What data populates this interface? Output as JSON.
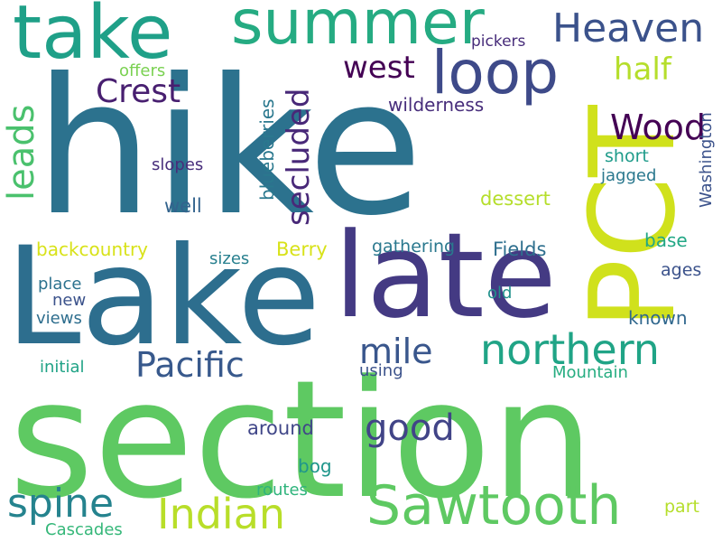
{
  "background_color": "#ffffff",
  "palette": {
    "dark_purple": "#440154",
    "indigo": "#3e4a89",
    "blue": "#31688e",
    "teal": "#26828e",
    "green_teal": "#1f9e89",
    "green": "#35b779",
    "light_green": "#6ece58",
    "yellow_green": "#b5de2b",
    "yellow": "#d8e219"
  },
  "words": [
    {
      "id": "hike",
      "text": "hike"
    },
    {
      "id": "section",
      "text": "section"
    },
    {
      "id": "lake",
      "text": "Lake"
    },
    {
      "id": "late",
      "text": "late"
    },
    {
      "id": "pct",
      "text": "PCT"
    },
    {
      "id": "summer",
      "text": "summer"
    },
    {
      "id": "take",
      "text": "take"
    },
    {
      "id": "loop",
      "text": "loop"
    },
    {
      "id": "heaven",
      "text": "Heaven"
    },
    {
      "id": "sawtooth",
      "text": "Sawtooth"
    },
    {
      "id": "northern",
      "text": "northern"
    },
    {
      "id": "indian",
      "text": "Indian"
    },
    {
      "id": "spine",
      "text": "spine"
    },
    {
      "id": "pacific",
      "text": "Pacific"
    },
    {
      "id": "mile",
      "text": "mile"
    },
    {
      "id": "good",
      "text": "good"
    },
    {
      "id": "west",
      "text": "west"
    },
    {
      "id": "crest",
      "text": "Crest"
    },
    {
      "id": "wood",
      "text": "Wood"
    },
    {
      "id": "half",
      "text": "half"
    },
    {
      "id": "leads",
      "text": "leads"
    },
    {
      "id": "secluded",
      "text": "secluded"
    },
    {
      "id": "blueberries",
      "text": "blueberries"
    },
    {
      "id": "washington",
      "text": "Washington"
    },
    {
      "id": "wilderness",
      "text": "wilderness"
    },
    {
      "id": "pickers",
      "text": "pickers"
    },
    {
      "id": "offers",
      "text": "offers"
    },
    {
      "id": "slopes",
      "text": "slopes"
    },
    {
      "id": "short",
      "text": "short"
    },
    {
      "id": "jagged",
      "text": "jagged"
    },
    {
      "id": "dessert",
      "text": "dessert"
    },
    {
      "id": "well",
      "text": "well"
    },
    {
      "id": "backcountry",
      "text": "backcountry"
    },
    {
      "id": "berry",
      "text": "Berry"
    },
    {
      "id": "gathering",
      "text": "gathering"
    },
    {
      "id": "fields",
      "text": "Fields"
    },
    {
      "id": "base",
      "text": "base"
    },
    {
      "id": "sizes",
      "text": "sizes"
    },
    {
      "id": "ages",
      "text": "ages"
    },
    {
      "id": "place",
      "text": "place"
    },
    {
      "id": "new",
      "text": "new"
    },
    {
      "id": "old",
      "text": "old"
    },
    {
      "id": "views",
      "text": "views"
    },
    {
      "id": "known",
      "text": "known"
    },
    {
      "id": "initial",
      "text": "initial"
    },
    {
      "id": "using",
      "text": "using"
    },
    {
      "id": "mountain",
      "text": "Mountain"
    },
    {
      "id": "around",
      "text": "around"
    },
    {
      "id": "bog",
      "text": "bog"
    },
    {
      "id": "routes",
      "text": "routes"
    },
    {
      "id": "part",
      "text": "part"
    },
    {
      "id": "cascades",
      "text": "Cascades"
    }
  ]
}
